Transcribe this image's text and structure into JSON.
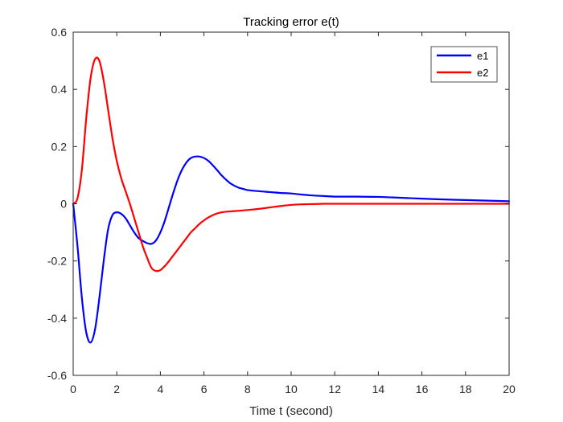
{
  "chart_data": {
    "type": "line",
    "title": "Tracking error e(t)",
    "xlabel": "Time t (second)",
    "ylabel": "",
    "xlim": [
      0,
      20
    ],
    "ylim": [
      -0.6,
      0.6
    ],
    "xticks": [
      0,
      2,
      4,
      6,
      8,
      10,
      12,
      14,
      16,
      18,
      20
    ],
    "yticks": [
      -0.6,
      -0.4,
      -0.2,
      0,
      0.2,
      0.4,
      0.6
    ],
    "grid": false,
    "legend": "top-right",
    "series": [
      {
        "name": "e1",
        "color": "#0000ff",
        "x": [
          0,
          0.2,
          0.4,
          0.6,
          0.8,
          1.0,
          1.2,
          1.4,
          1.6,
          1.8,
          2.0,
          2.2,
          2.4,
          2.6,
          2.8,
          3.0,
          3.2,
          3.4,
          3.6,
          3.8,
          4.0,
          4.2,
          4.4,
          4.6,
          4.8,
          5.0,
          5.2,
          5.4,
          5.6,
          5.8,
          6.0,
          6.2,
          6.4,
          6.6,
          6.8,
          7.0,
          7.2,
          7.4,
          7.6,
          7.8,
          8.0,
          8.5,
          9.0,
          9.5,
          10.0,
          10.5,
          11.0,
          11.5,
          12.0,
          13.0,
          14.0,
          15.0,
          16.0,
          17.0,
          18.0,
          19.0,
          20.0
        ],
        "y": [
          0,
          -0.15,
          -0.33,
          -0.45,
          -0.485,
          -0.44,
          -0.33,
          -0.2,
          -0.09,
          -0.04,
          -0.03,
          -0.035,
          -0.05,
          -0.075,
          -0.1,
          -0.12,
          -0.13,
          -0.138,
          -0.14,
          -0.128,
          -0.1,
          -0.06,
          -0.01,
          0.04,
          0.085,
          0.12,
          0.145,
          0.16,
          0.165,
          0.165,
          0.16,
          0.15,
          0.135,
          0.118,
          0.1,
          0.085,
          0.072,
          0.063,
          0.056,
          0.052,
          0.048,
          0.044,
          0.041,
          0.038,
          0.036,
          0.032,
          0.029,
          0.027,
          0.025,
          0.025,
          0.024,
          0.021,
          0.018,
          0.015,
          0.013,
          0.011,
          0.009
        ]
      },
      {
        "name": "e2",
        "color": "#ff0000",
        "x": [
          0,
          0.2,
          0.4,
          0.6,
          0.8,
          1.0,
          1.2,
          1.4,
          1.6,
          1.8,
          2.0,
          2.2,
          2.4,
          2.6,
          2.8,
          3.0,
          3.2,
          3.4,
          3.6,
          3.8,
          4.0,
          4.2,
          4.4,
          4.6,
          4.8,
          5.0,
          5.2,
          5.4,
          5.6,
          5.8,
          6.0,
          6.2,
          6.4,
          6.6,
          6.8,
          7.0,
          7.5,
          8.0,
          8.5,
          9.0,
          9.5,
          10.0,
          10.5,
          11.0,
          11.5,
          12.0,
          13.0,
          14.0,
          15.0,
          16.0,
          17.0,
          18.0,
          19.0,
          20.0
        ],
        "y": [
          0,
          0.02,
          0.12,
          0.3,
          0.44,
          0.505,
          0.5,
          0.43,
          0.33,
          0.23,
          0.15,
          0.09,
          0.045,
          0.0,
          -0.05,
          -0.1,
          -0.15,
          -0.19,
          -0.225,
          -0.235,
          -0.232,
          -0.218,
          -0.2,
          -0.18,
          -0.16,
          -0.14,
          -0.12,
          -0.1,
          -0.085,
          -0.07,
          -0.058,
          -0.048,
          -0.04,
          -0.034,
          -0.03,
          -0.028,
          -0.025,
          -0.022,
          -0.018,
          -0.013,
          -0.008,
          -0.004,
          -0.002,
          -0.001,
          0.0,
          0.0,
          0.0,
          0.0,
          0.0,
          0.0,
          0.0,
          0.0,
          0.0,
          0.0
        ]
      }
    ]
  }
}
